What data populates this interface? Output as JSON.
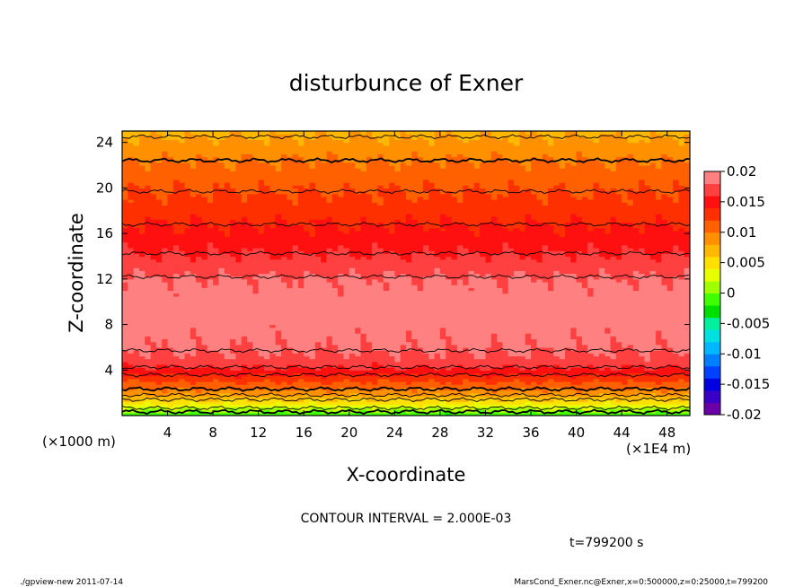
{
  "chart_data": {
    "type": "heatmap",
    "title": "disturbunce of Exner",
    "xlabel": "X-coordinate",
    "ylabel": "Z-coordinate",
    "x_unit_label": "(×1E4 m)",
    "y_unit_label": "(×1000 m)",
    "xlim": [
      0,
      50
    ],
    "ylim": [
      0,
      25
    ],
    "x_ticks": [
      4,
      8,
      12,
      16,
      20,
      24,
      28,
      32,
      36,
      40,
      44,
      48
    ],
    "y_ticks": [
      4,
      8,
      12,
      16,
      20,
      24
    ],
    "colorbar": {
      "vmin": -0.02,
      "vmax": 0.02,
      "ticks": [
        "0.02",
        "0.015",
        "0.01",
        "0.005",
        "0",
        "-0.005",
        "-0.01",
        "-0.015",
        "-0.02"
      ],
      "tick_values": [
        0.02,
        0.015,
        0.01,
        0.005,
        0,
        -0.005,
        -0.01,
        -0.015,
        -0.02
      ],
      "bands": [
        "#6a00a8",
        "#3a00c8",
        "#0000e0",
        "#0040ff",
        "#0080ff",
        "#00b8ff",
        "#00e0e0",
        "#00f0a0",
        "#00e000",
        "#40ff00",
        "#a0ff00",
        "#e8ff00",
        "#ffe000",
        "#ffb800",
        "#ff9000",
        "#ff6000",
        "#ff3000",
        "#ff1010",
        "#ff4040",
        "#ff8080"
      ]
    },
    "contour_interval": "CONTOUR INTERVAL = 2.000E-03",
    "time_label": "t=799200 s",
    "profile_z": [
      0,
      1,
      2,
      3,
      4,
      5,
      6,
      8,
      10,
      12,
      14,
      16,
      18,
      20,
      22,
      24,
      25
    ],
    "profile_value": [
      -0.002,
      0.004,
      0.009,
      0.012,
      0.0155,
      0.0175,
      0.0182,
      0.0188,
      0.019,
      0.0182,
      0.0162,
      0.0146,
      0.0131,
      0.0118,
      0.0104,
      0.0085,
      0.0075
    ]
  },
  "footer": {
    "left": "./gpview-new   2011-07-14",
    "right": "MarsCond_Exner.nc@Exner,x=0:500000,z=0:25000,t=799200"
  }
}
